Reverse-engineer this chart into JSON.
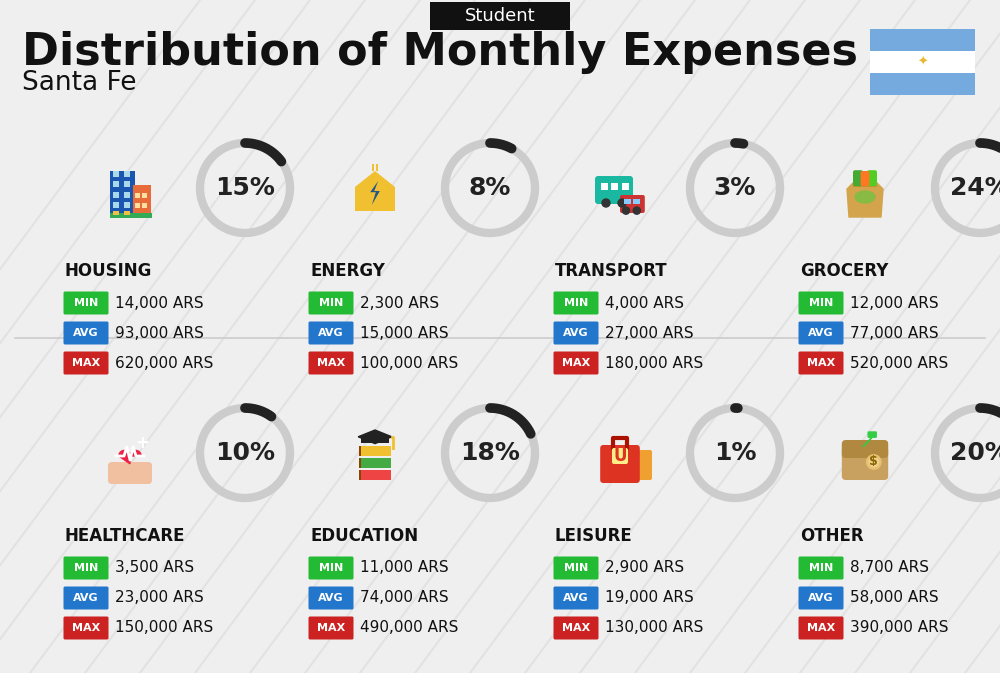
{
  "title": "Distribution of Monthly Expenses",
  "subtitle": "Santa Fe",
  "tag": "Student",
  "background_color": "#efefef",
  "categories": [
    {
      "name": "HOUSING",
      "percent": 15,
      "min": "14,000 ARS",
      "avg": "93,000 ARS",
      "max": "620,000 ARS"
    },
    {
      "name": "ENERGY",
      "percent": 8,
      "min": "2,300 ARS",
      "avg": "15,000 ARS",
      "max": "100,000 ARS"
    },
    {
      "name": "TRANSPORT",
      "percent": 3,
      "min": "4,000 ARS",
      "avg": "27,000 ARS",
      "max": "180,000 ARS"
    },
    {
      "name": "GROCERY",
      "percent": 24,
      "min": "12,000 ARS",
      "avg": "77,000 ARS",
      "max": "520,000 ARS"
    },
    {
      "name": "HEALTHCARE",
      "percent": 10,
      "min": "3,500 ARS",
      "avg": "23,000 ARS",
      "max": "150,000 ARS"
    },
    {
      "name": "EDUCATION",
      "percent": 18,
      "min": "11,000 ARS",
      "avg": "74,000 ARS",
      "max": "490,000 ARS"
    },
    {
      "name": "LEISURE",
      "percent": 1,
      "min": "2,900 ARS",
      "avg": "19,000 ARS",
      "max": "130,000 ARS"
    },
    {
      "name": "OTHER",
      "percent": 20,
      "min": "8,700 ARS",
      "avg": "58,000 ARS",
      "max": "390,000 ARS"
    }
  ],
  "min_color": "#22bb33",
  "avg_color": "#2277cc",
  "max_color": "#cc2222",
  "label_color_text": "#ffffff",
  "arc_dark": "#222222",
  "arc_light": "#cccccc",
  "title_fontsize": 32,
  "subtitle_fontsize": 19,
  "tag_fontsize": 13,
  "category_fontsize": 12,
  "value_fontsize": 11,
  "percent_fontsize": 18,
  "badge_fontsize": 8,
  "flag_blue": "#74aadd",
  "flag_white": "#ffffff",
  "stripe_color": "#dddddd"
}
